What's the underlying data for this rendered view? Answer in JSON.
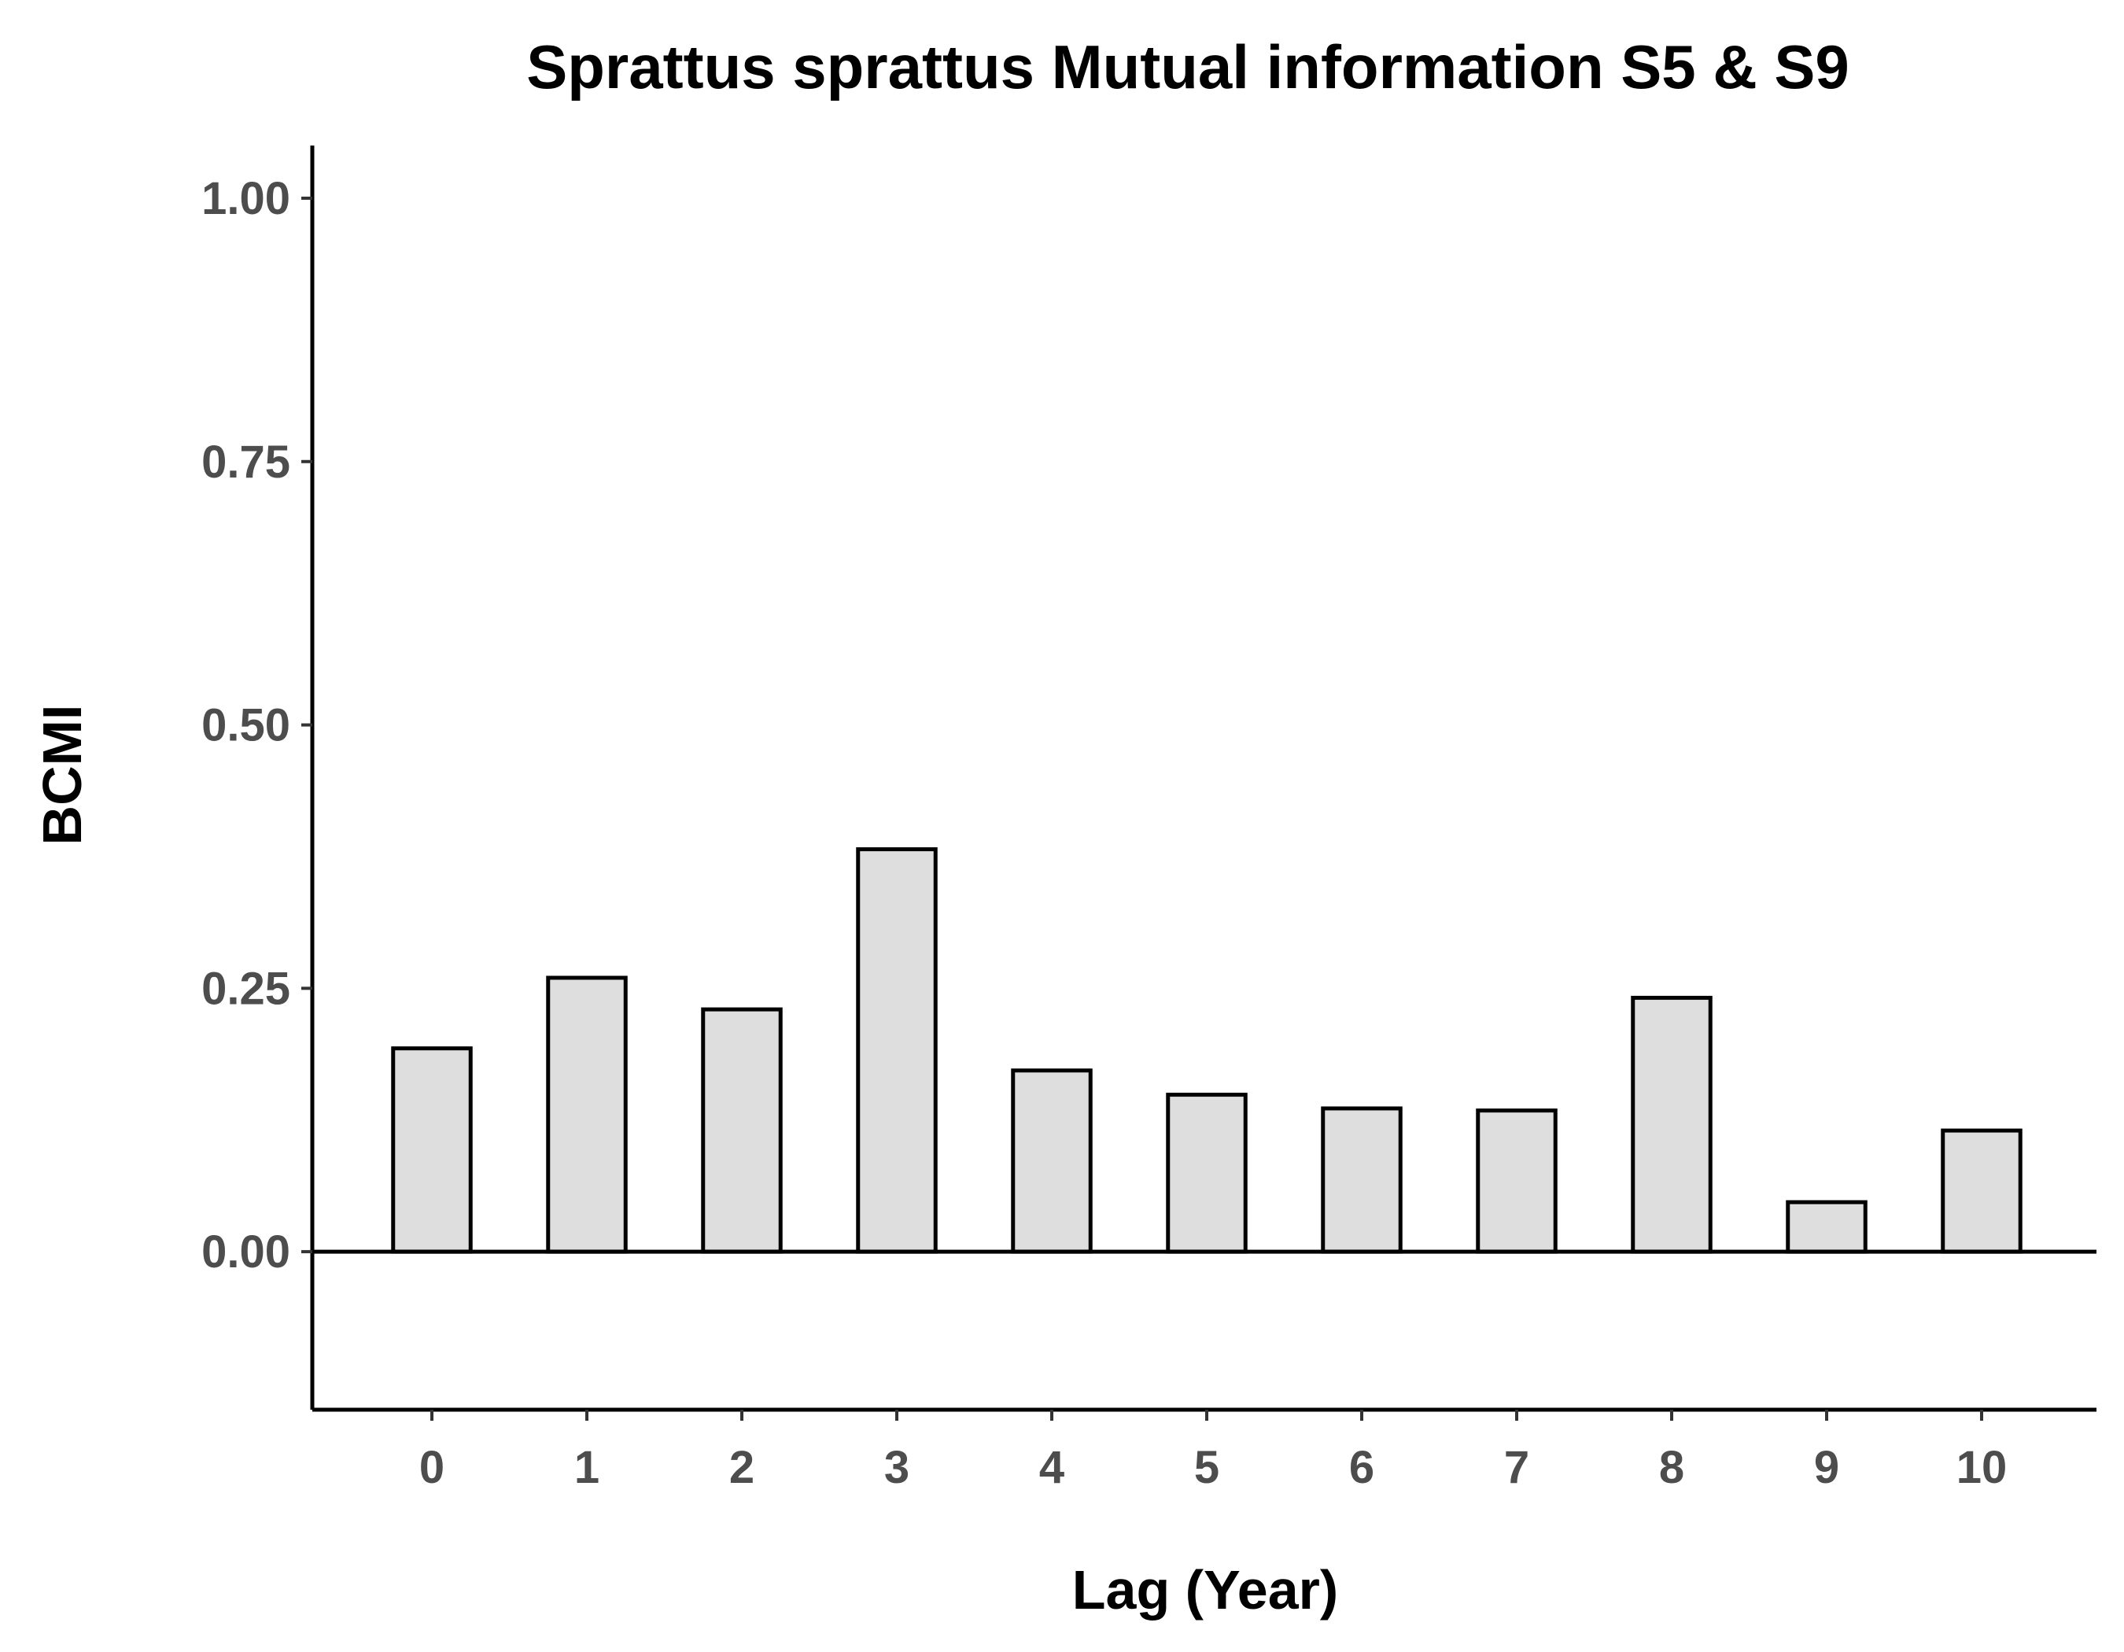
{
  "chart_data": {
    "type": "bar",
    "title": "Sprattus sprattus Mutual information S5 & S9",
    "xlabel": "Lag (Year)",
    "ylabel": "BCMI",
    "categories": [
      "0",
      "1",
      "2",
      "3",
      "4",
      "5",
      "6",
      "7",
      "8",
      "9",
      "10"
    ],
    "values": [
      0.193,
      0.26,
      0.23,
      0.382,
      0.172,
      0.149,
      0.136,
      0.134,
      0.241,
      0.047,
      0.115
    ],
    "ylim": [
      -0.15,
      1.05
    ],
    "yticks": [
      0.0,
      0.25,
      0.5,
      0.75,
      1.0
    ],
    "ytick_labels": [
      "0.00",
      "0.25",
      "0.50",
      "0.75",
      "1.00"
    ],
    "bar_fill": "#dedede",
    "bar_stroke": "#000000",
    "grid": false,
    "zero_line": true
  }
}
